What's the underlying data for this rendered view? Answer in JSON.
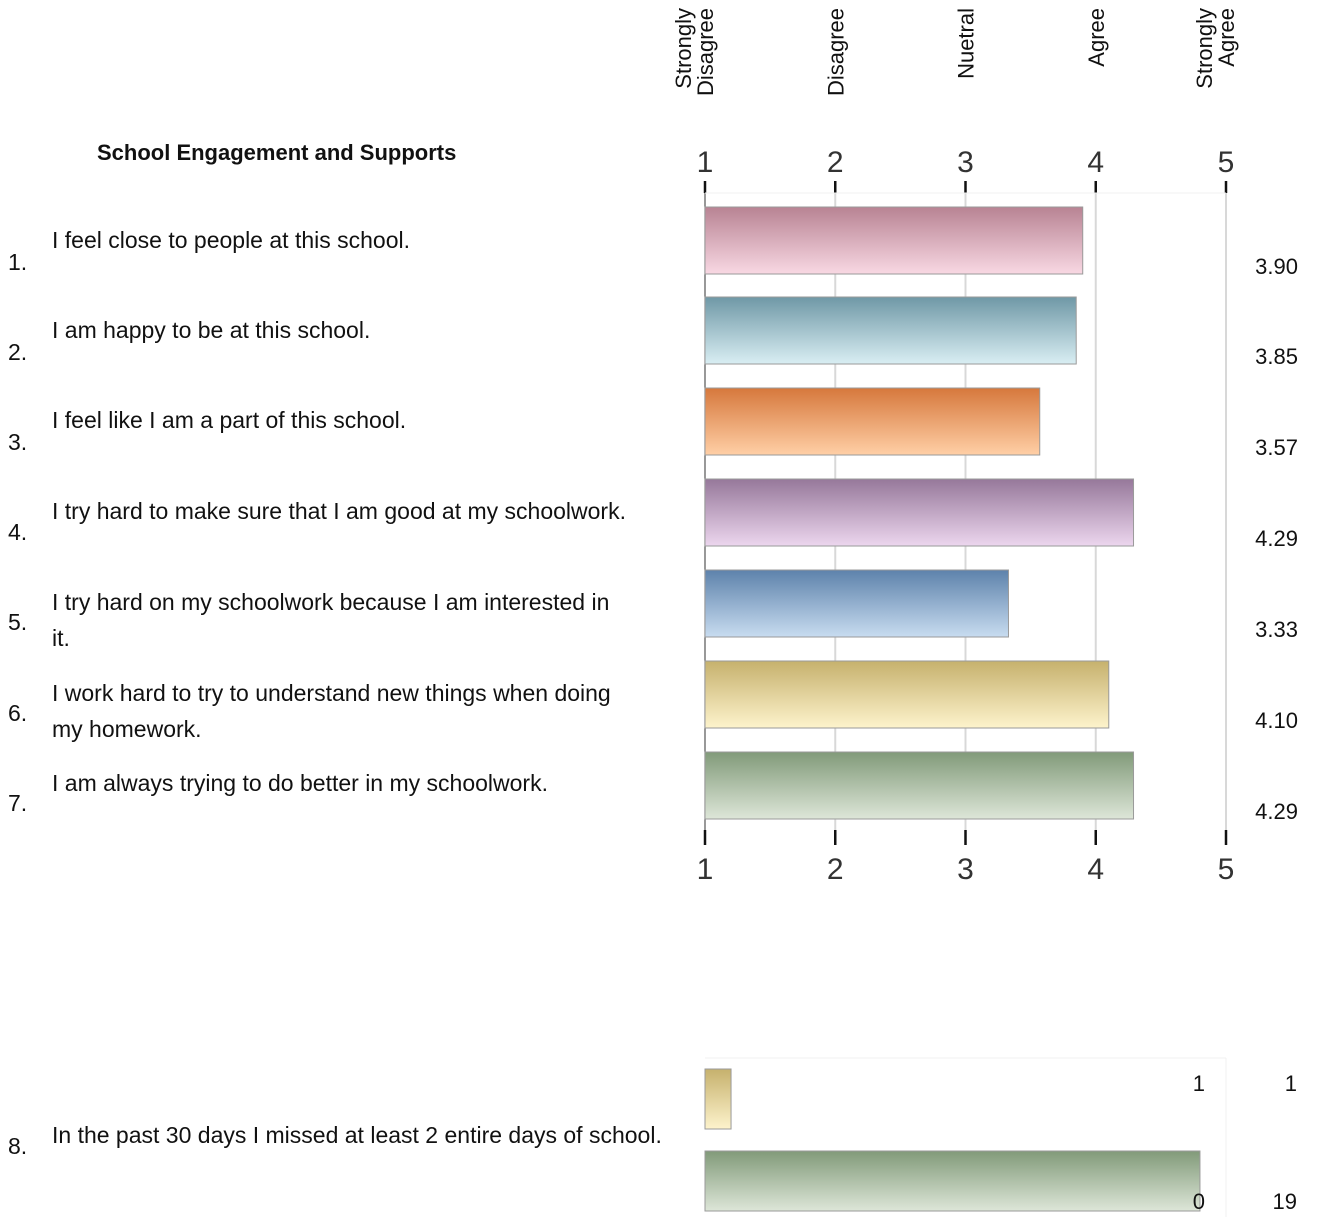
{
  "title": "School Engagement and Supports",
  "scale_labels": [
    {
      "lines": [
        "Strongly",
        "Disagree"
      ],
      "value": 1
    },
    {
      "lines": [
        "Disagree"
      ],
      "value": 2
    },
    {
      "lines": [
        "Nuetral"
      ],
      "value": 3
    },
    {
      "lines": [
        "Agree"
      ],
      "value": 4
    },
    {
      "lines": [
        "Strongly",
        "Agree"
      ],
      "value": 5
    }
  ],
  "questions": [
    {
      "num": "1.",
      "text": "I feel close to people at this school."
    },
    {
      "num": "2.",
      "text": "I am happy to be at this school."
    },
    {
      "num": "3.",
      "text": "I feel like I am a part of this school."
    },
    {
      "num": "4.",
      "text": "I try hard to make sure that I am good at my schoolwork."
    },
    {
      "num": "5.",
      "text": "I try hard on my schoolwork because I am interested in it."
    },
    {
      "num": "6.",
      "text": "I work hard to try to understand new things when doing my homework."
    },
    {
      "num": "7.",
      "text": "I am always trying to do better in my schoolwork."
    },
    {
      "num": "8.",
      "text": "In the past 30 days I missed at least 2 entire days of school."
    }
  ],
  "colors": {
    "pink": [
      "#b88393",
      "#f8d8e3"
    ],
    "teal": [
      "#6f98a6",
      "#d9eef3"
    ],
    "orange": [
      "#d6783c",
      "#ffcfa6"
    ],
    "purple": [
      "#96789a",
      "#ecd6ee"
    ],
    "blue": [
      "#5d82ab",
      "#c8dcf0"
    ],
    "gold": [
      "#c6b16d",
      "#fdf3cc"
    ],
    "green": [
      "#819a79",
      "#dde6d8"
    ]
  },
  "chart_data": [
    {
      "type": "bar",
      "orientation": "horizontal",
      "categories": [
        "1.",
        "2.",
        "3.",
        "4.",
        "5.",
        "6.",
        "7."
      ],
      "values": [
        3.9,
        3.85,
        3.57,
        4.29,
        3.33,
        4.1,
        4.29
      ],
      "value_labels": [
        "3.90",
        "3.85",
        "3.57",
        "4.29",
        "3.33",
        "4.10",
        "4.29"
      ],
      "bar_colors": [
        "pink",
        "teal",
        "orange",
        "purple",
        "blue",
        "gold",
        "green"
      ],
      "xlim": [
        1,
        5
      ],
      "xticks": [
        "1",
        "2",
        "3",
        "4",
        "5"
      ],
      "grid": true
    },
    {
      "type": "bar",
      "orientation": "horizontal",
      "categories": [
        "1",
        "0"
      ],
      "values": [
        1,
        19
      ],
      "value_labels": [
        "1",
        "19"
      ],
      "bar_colors": [
        "gold",
        "green"
      ],
      "xlim": [
        0,
        20
      ],
      "grid": false
    }
  ]
}
